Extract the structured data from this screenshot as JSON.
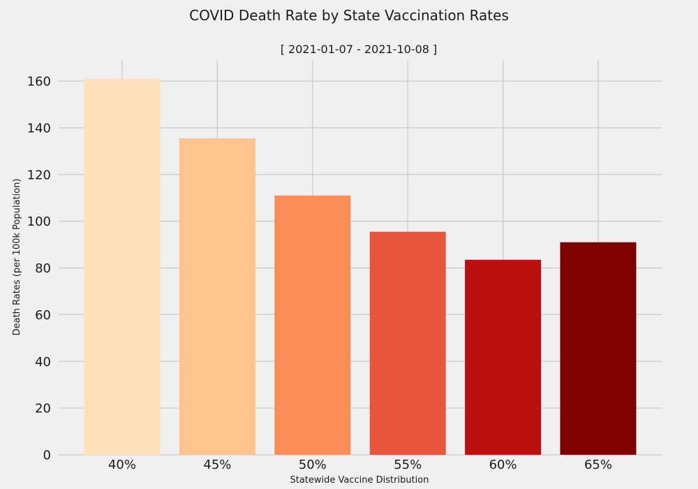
{
  "chart_data": {
    "type": "bar",
    "title": "COVID Death Rate by State Vaccination Rates",
    "subtitle": "[ 2021-01-07 - 2021-10-08 ]",
    "xlabel": "Statewide Vaccine Distribution",
    "ylabel": "Death Rates (per 100k Population)",
    "categories": [
      "40%",
      "45%",
      "50%",
      "55%",
      "60%",
      "65%"
    ],
    "values": [
      161,
      135.5,
      111,
      95.5,
      83.5,
      91
    ],
    "colors": [
      "#fee1bb",
      "#fdc48f",
      "#fc8d59",
      "#e7553c",
      "#bc1010",
      "#7f0000"
    ],
    "ylim": [
      0,
      169
    ],
    "yticks": [
      "0",
      "20",
      "40",
      "60",
      "80",
      "100",
      "120",
      "140",
      "160"
    ],
    "grid": true,
    "background": "#f0f0f0",
    "grid_color": "#cbcbcb"
  }
}
